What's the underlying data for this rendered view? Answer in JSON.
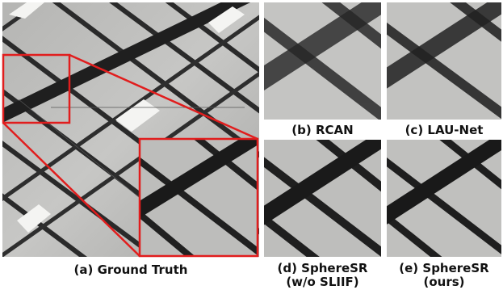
{
  "figure": {
    "captions": {
      "ground_truth": "(a) Ground Truth",
      "rcan": "(b) RCAN",
      "lau_net": "(c) LAU-Net",
      "spheresr_wo_line1": "(d) SphereSR",
      "spheresr_wo_line2": "(w/o SLIIF)",
      "spheresr_ours_line1": "(e) SphereSR",
      "spheresr_ours_line2": "(ours)"
    },
    "highlight_color": "#e11d1d"
  }
}
